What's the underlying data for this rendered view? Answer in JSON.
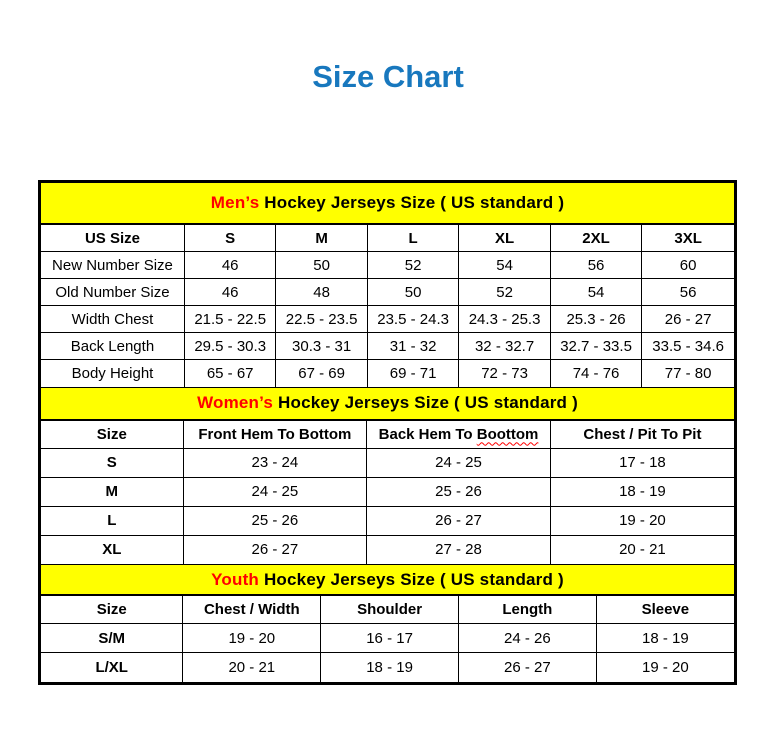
{
  "page": {
    "title": "Size Chart"
  },
  "colors": {
    "title_blue": "#1878BE",
    "band_yellow": "#FFFF00",
    "accent_red": "#FF0000",
    "border_black": "#000000"
  },
  "sections": [
    {
      "id": "mens",
      "band": {
        "highlight": "Men’s",
        "rest": " Hockey Jerseys Size ( US standard )"
      },
      "columns": [
        "US Size",
        "S",
        "M",
        "L",
        "XL",
        "2XL",
        "3XL"
      ],
      "rows": [
        [
          "New Number Size",
          "46",
          "50",
          "52",
          "54",
          "56",
          "60"
        ],
        [
          "Old Number Size",
          "46",
          "48",
          "50",
          "52",
          "54",
          "56"
        ],
        [
          "Width Chest",
          "21.5 - 22.5",
          "22.5 - 23.5",
          "23.5 - 24.3",
          "24.3 - 25.3",
          "25.3 - 26",
          "26 - 27"
        ],
        [
          "Back Length",
          "29.5 - 30.3",
          "30.3 - 31",
          "31 - 32",
          "32 - 32.7",
          "32.7 - 33.5",
          "33.5 - 34.6"
        ],
        [
          "Body Height",
          "65 - 67",
          "67 - 69",
          "69 - 71",
          "72 - 73",
          "74 - 76",
          "77 - 80"
        ]
      ]
    },
    {
      "id": "womens",
      "band": {
        "highlight": "Women’s",
        "rest": " Hockey Jerseys Size ( US standard )"
      },
      "columns": [
        "Size",
        "Front Hem To Bottom",
        "Back Hem To Boottom",
        "Chest / Pit To Pit"
      ],
      "spellcheck_squiggle": {
        "column_index": 2,
        "word": "Boottom"
      },
      "rows": [
        [
          "S",
          "23 - 24",
          "24 - 25",
          "17 - 18"
        ],
        [
          "M",
          "24 - 25",
          "25 - 26",
          "18 - 19"
        ],
        [
          "L",
          "25 - 26",
          "26 - 27",
          "19 - 20"
        ],
        [
          "XL",
          "26 - 27",
          "27 - 28",
          "20 - 21"
        ]
      ]
    },
    {
      "id": "youth",
      "band": {
        "highlight": "Youth",
        "rest": " Hockey Jerseys Size ( US standard )"
      },
      "columns": [
        "Size",
        "Chest / Width",
        "Shoulder",
        "Length",
        "Sleeve"
      ],
      "rows": [
        [
          "S/M",
          "19 - 20",
          "16 - 17",
          "24 - 26",
          "18 - 19"
        ],
        [
          "L/XL",
          "20 - 21",
          "18 - 19",
          "26 - 27",
          "19 - 20"
        ]
      ]
    }
  ]
}
